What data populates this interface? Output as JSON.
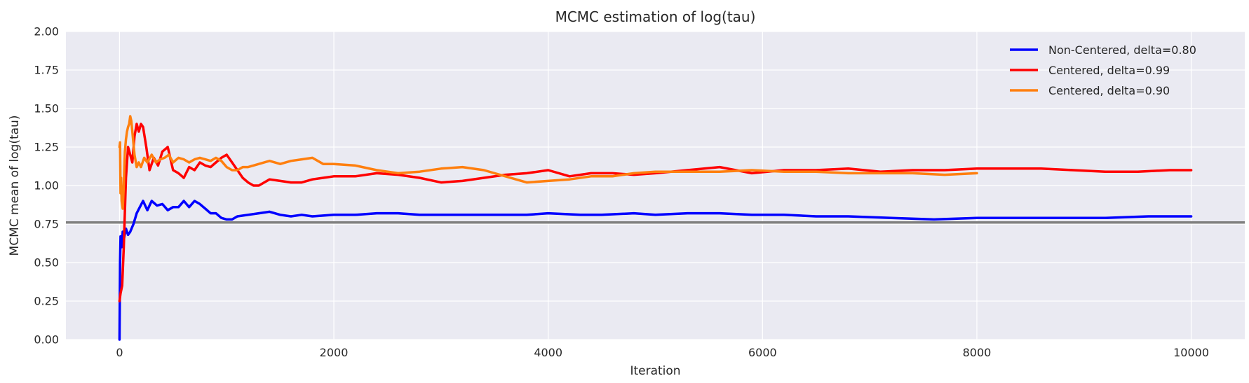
{
  "chart_data": {
    "type": "line",
    "title": "MCMC estimation of log(tau)",
    "xlabel": "Iteration",
    "ylabel": "MCMC mean of log(tau)",
    "xlim": [
      -500,
      10500
    ],
    "ylim": [
      0,
      2
    ],
    "xticks": [
      0,
      2000,
      4000,
      6000,
      8000,
      10000
    ],
    "yticks": [
      "0.00",
      "0.25",
      "0.50",
      "0.75",
      "1.00",
      "1.25",
      "1.50",
      "1.75",
      "2.00"
    ],
    "grid": true,
    "legend_position": "top-right",
    "reference_line": {
      "y": 0.76,
      "color": "#808080"
    },
    "series": [
      {
        "name": "Non-Centered, delta=0.80",
        "color": "#0000ff",
        "x": [
          0,
          5,
          10,
          20,
          30,
          40,
          60,
          80,
          100,
          130,
          160,
          190,
          220,
          260,
          300,
          350,
          400,
          450,
          500,
          550,
          600,
          650,
          700,
          750,
          800,
          850,
          900,
          950,
          1000,
          1050,
          1100,
          1200,
          1300,
          1400,
          1500,
          1600,
          1700,
          1800,
          2000,
          2200,
          2400,
          2600,
          2800,
          3000,
          3200,
          3500,
          3800,
          4000,
          4300,
          4500,
          4800,
          5000,
          5300,
          5600,
          5900,
          6200,
          6500,
          6800,
          7200,
          7600,
          8000,
          8400,
          8800,
          9200,
          9600,
          10000
        ],
        "y": [
          0.0,
          0.5,
          0.67,
          0.6,
          0.7,
          0.65,
          0.72,
          0.68,
          0.7,
          0.75,
          0.82,
          0.86,
          0.9,
          0.84,
          0.9,
          0.87,
          0.88,
          0.84,
          0.86,
          0.86,
          0.9,
          0.86,
          0.9,
          0.88,
          0.85,
          0.82,
          0.82,
          0.79,
          0.78,
          0.78,
          0.8,
          0.81,
          0.82,
          0.83,
          0.81,
          0.8,
          0.81,
          0.8,
          0.81,
          0.81,
          0.82,
          0.82,
          0.81,
          0.81,
          0.81,
          0.81,
          0.81,
          0.82,
          0.81,
          0.81,
          0.82,
          0.81,
          0.82,
          0.82,
          0.81,
          0.81,
          0.8,
          0.8,
          0.79,
          0.78,
          0.79,
          0.79,
          0.79,
          0.79,
          0.8,
          0.8
        ]
      },
      {
        "name": "Centered, delta=0.99",
        "color": "#ff0000",
        "x": [
          0,
          10,
          25,
          40,
          60,
          80,
          100,
          120,
          140,
          160,
          180,
          200,
          220,
          250,
          280,
          320,
          360,
          400,
          450,
          500,
          550,
          600,
          650,
          700,
          750,
          800,
          850,
          900,
          950,
          1000,
          1050,
          1100,
          1150,
          1200,
          1250,
          1300,
          1350,
          1400,
          1500,
          1600,
          1700,
          1800,
          1900,
          2000,
          2200,
          2400,
          2600,
          2800,
          3000,
          3200,
          3400,
          3600,
          3800,
          4000,
          4200,
          4400,
          4600,
          4800,
          5000,
          5300,
          5600,
          5900,
          6200,
          6500,
          6800,
          7100,
          7400,
          7700,
          8000,
          8300,
          8600,
          8900,
          9200,
          9500,
          9800,
          10000
        ],
        "y": [
          0.25,
          0.3,
          0.35,
          0.6,
          1.05,
          1.25,
          1.2,
          1.15,
          1.32,
          1.4,
          1.35,
          1.4,
          1.38,
          1.25,
          1.1,
          1.18,
          1.13,
          1.22,
          1.25,
          1.1,
          1.08,
          1.05,
          1.12,
          1.1,
          1.15,
          1.13,
          1.12,
          1.15,
          1.18,
          1.2,
          1.15,
          1.1,
          1.05,
          1.02,
          1.0,
          1.0,
          1.02,
          1.04,
          1.03,
          1.02,
          1.02,
          1.04,
          1.05,
          1.06,
          1.06,
          1.08,
          1.07,
          1.05,
          1.02,
          1.03,
          1.05,
          1.07,
          1.08,
          1.1,
          1.06,
          1.08,
          1.08,
          1.07,
          1.08,
          1.1,
          1.12,
          1.08,
          1.1,
          1.1,
          1.11,
          1.09,
          1.1,
          1.1,
          1.11,
          1.11,
          1.11,
          1.1,
          1.09,
          1.09,
          1.1,
          1.1
        ]
      },
      {
        "name": "Centered, delta=0.90",
        "color": "#ff7f0e",
        "x": [
          0,
          5,
          10,
          15,
          20,
          30,
          40,
          50,
          60,
          70,
          80,
          90,
          100,
          110,
          120,
          140,
          160,
          180,
          200,
          230,
          260,
          300,
          340,
          380,
          420,
          460,
          500,
          550,
          600,
          650,
          700,
          750,
          800,
          850,
          900,
          950,
          1000,
          1050,
          1100,
          1150,
          1200,
          1300,
          1400,
          1500,
          1600,
          1700,
          1800,
          1900,
          2000,
          2200,
          2400,
          2600,
          2800,
          3000,
          3200,
          3400,
          3600,
          3700,
          3800,
          4000,
          4200,
          4400,
          4600,
          4800,
          5000,
          5300,
          5600,
          5900,
          6200,
          6500,
          6800,
          7100,
          7400,
          7700,
          8000
        ],
        "y": [
          1.25,
          1.28,
          0.95,
          1.05,
          0.9,
          0.85,
          1.0,
          1.22,
          1.3,
          1.35,
          1.38,
          1.4,
          1.45,
          1.42,
          1.35,
          1.2,
          1.12,
          1.15,
          1.12,
          1.18,
          1.15,
          1.2,
          1.15,
          1.17,
          1.18,
          1.2,
          1.15,
          1.18,
          1.17,
          1.15,
          1.17,
          1.18,
          1.17,
          1.16,
          1.18,
          1.16,
          1.12,
          1.1,
          1.1,
          1.12,
          1.12,
          1.14,
          1.16,
          1.14,
          1.16,
          1.17,
          1.18,
          1.14,
          1.14,
          1.13,
          1.1,
          1.08,
          1.09,
          1.11,
          1.12,
          1.1,
          1.06,
          1.04,
          1.02,
          1.03,
          1.04,
          1.06,
          1.06,
          1.08,
          1.09,
          1.09,
          1.09,
          1.1,
          1.09,
          1.09,
          1.08,
          1.08,
          1.08,
          1.07,
          1.08
        ]
      }
    ]
  }
}
